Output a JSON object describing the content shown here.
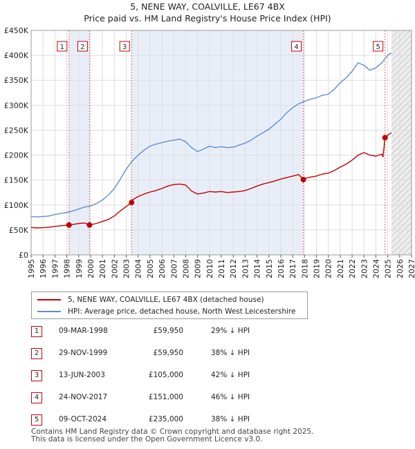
{
  "chart_data": {
    "type": "line",
    "title": "5, NENE WAY, COALVILLE, LE67 4BX",
    "subtitle": "Price paid vs. HM Land Registry's House Price Index (HPI)",
    "xlabel": "",
    "ylabel": "",
    "xlim": [
      1995,
      2027
    ],
    "ylim": [
      0,
      450000
    ],
    "x_ticks": [
      "1995",
      "1996",
      "1997",
      "1998",
      "1999",
      "2000",
      "2001",
      "2002",
      "2003",
      "2004",
      "2005",
      "2006",
      "2007",
      "2008",
      "2009",
      "2010",
      "2011",
      "2012",
      "2013",
      "2014",
      "2015",
      "2016",
      "2017",
      "2018",
      "2019",
      "2020",
      "2021",
      "2022",
      "2023",
      "2024",
      "2025",
      "2026",
      "2027"
    ],
    "y_ticks": [
      {
        "value": 0,
        "label": "£0"
      },
      {
        "value": 50000,
        "label": "£50K"
      },
      {
        "value": 100000,
        "label": "£100K"
      },
      {
        "value": 150000,
        "label": "£150K"
      },
      {
        "value": 200000,
        "label": "£200K"
      },
      {
        "value": 250000,
        "label": "£250K"
      },
      {
        "value": 300000,
        "label": "£300K"
      },
      {
        "value": 350000,
        "label": "£350K"
      },
      {
        "value": 400000,
        "label": "£400K"
      },
      {
        "value": 450000,
        "label": "£450K"
      }
    ],
    "series": [
      {
        "name": "5, NENE WAY, COALVILLE, LE67 4BX (detached house)",
        "color": "#c00000",
        "x": [
          1995.0,
          1995.5,
          1996.0,
          1996.5,
          1997.0,
          1997.5,
          1998.0,
          1998.19,
          1998.5,
          1999.0,
          1999.5,
          1999.91,
          2000.0,
          2000.5,
          2001.0,
          2001.5,
          2002.0,
          2002.5,
          2003.0,
          2003.45,
          2003.5,
          2004.0,
          2004.5,
          2005.0,
          2005.5,
          2006.0,
          2006.5,
          2007.0,
          2007.5,
          2008.0,
          2008.5,
          2009.0,
          2009.5,
          2010.0,
          2010.5,
          2011.0,
          2011.5,
          2012.0,
          2012.5,
          2013.0,
          2013.5,
          2014.0,
          2014.5,
          2015.0,
          2015.5,
          2016.0,
          2016.5,
          2017.0,
          2017.5,
          2017.9,
          2018.0,
          2018.5,
          2019.0,
          2019.5,
          2020.0,
          2020.5,
          2021.0,
          2021.5,
          2022.0,
          2022.5,
          2023.0,
          2023.5,
          2024.0,
          2024.5,
          2024.6,
          2024.77,
          2025.0,
          2025.3
        ],
        "values": [
          55000,
          54000,
          54500,
          55500,
          57000,
          58500,
          59500,
          59950,
          61000,
          63000,
          64000,
          59950,
          60500,
          63000,
          67000,
          71000,
          78000,
          88000,
          97000,
          105000,
          110000,
          117000,
          122000,
          126000,
          129000,
          133000,
          138000,
          141000,
          142000,
          140000,
          128000,
          122000,
          124000,
          127000,
          126000,
          127000,
          125000,
          126000,
          127000,
          129000,
          133000,
          138000,
          142000,
          145000,
          148000,
          152000,
          155000,
          158000,
          161000,
          151000,
          153000,
          156000,
          158000,
          162000,
          164000,
          169000,
          176000,
          182000,
          190000,
          200000,
          205000,
          200000,
          198000,
          202000,
          196000,
          235000,
          240000,
          245000
        ]
      },
      {
        "name": "HPI: Average price, detached house, North West Leicestershire",
        "color": "#5b8fd0",
        "x": [
          1995.0,
          1995.5,
          1996.0,
          1996.5,
          1997.0,
          1997.5,
          1998.0,
          1998.5,
          1999.0,
          1999.5,
          2000.0,
          2000.5,
          2001.0,
          2001.5,
          2002.0,
          2002.5,
          2003.0,
          2003.5,
          2004.0,
          2004.5,
          2005.0,
          2005.5,
          2006.0,
          2006.5,
          2007.0,
          2007.5,
          2008.0,
          2008.5,
          2009.0,
          2009.5,
          2010.0,
          2010.5,
          2011.0,
          2011.5,
          2012.0,
          2012.5,
          2013.0,
          2013.5,
          2014.0,
          2014.5,
          2015.0,
          2015.5,
          2016.0,
          2016.5,
          2017.0,
          2017.5,
          2018.0,
          2018.5,
          2019.0,
          2019.5,
          2020.0,
          2020.5,
          2021.0,
          2021.5,
          2022.0,
          2022.5,
          2023.0,
          2023.5,
          2024.0,
          2024.5,
          2025.0,
          2025.3
        ],
        "values": [
          77000,
          76000,
          77000,
          78000,
          81000,
          83000,
          85000,
          88000,
          92000,
          96000,
          98000,
          103000,
          110000,
          120000,
          133000,
          152000,
          172000,
          188000,
          200000,
          210000,
          218000,
          222000,
          225000,
          228000,
          230000,
          232000,
          227000,
          215000,
          207000,
          212000,
          218000,
          215000,
          217000,
          215000,
          216000,
          220000,
          224000,
          230000,
          238000,
          245000,
          252000,
          262000,
          272000,
          285000,
          295000,
          303000,
          308000,
          312000,
          315000,
          320000,
          322000,
          332000,
          345000,
          355000,
          368000,
          385000,
          380000,
          370000,
          375000,
          385000,
          400000,
          405000
        ]
      }
    ],
    "sales": [
      {
        "num": "1",
        "x": 1998.19,
        "value": 59950
      },
      {
        "num": "2",
        "x": 1999.91,
        "value": 59950
      },
      {
        "num": "3",
        "x": 2003.45,
        "value": 105000
      },
      {
        "num": "4",
        "x": 2017.9,
        "value": 151000
      },
      {
        "num": "5",
        "x": 2024.77,
        "value": 235000
      }
    ],
    "shaded_ranges": [
      [
        1998.19,
        1999.91
      ],
      [
        2003.45,
        2017.9
      ]
    ],
    "forecast_start": 2025.3
  },
  "legend": {
    "property_label": "5, NENE WAY, COALVILLE, LE67 4BX (detached house)",
    "hpi_label": "HPI: Average price, detached house, North West Leicestershire",
    "property_color": "#c00000",
    "hpi_color": "#5b8fd0"
  },
  "sales_table": [
    {
      "num": "1",
      "date": "09-MAR-1998",
      "price": "£59,950",
      "hpi": "29% ↓ HPI"
    },
    {
      "num": "2",
      "date": "29-NOV-1999",
      "price": "£59,950",
      "hpi": "38% ↓ HPI"
    },
    {
      "num": "3",
      "date": "13-JUN-2003",
      "price": "£105,000",
      "hpi": "42% ↓ HPI"
    },
    {
      "num": "4",
      "date": "24-NOV-2017",
      "price": "£151,000",
      "hpi": "46% ↓ HPI"
    },
    {
      "num": "5",
      "date": "09-OCT-2024",
      "price": "£235,000",
      "hpi": "38% ↓ HPI"
    }
  ],
  "footer": {
    "line1": "Contains HM Land Registry data © Crown copyright and database right 2025.",
    "line2": "This data is licensed under the Open Government Licence v3.0."
  }
}
